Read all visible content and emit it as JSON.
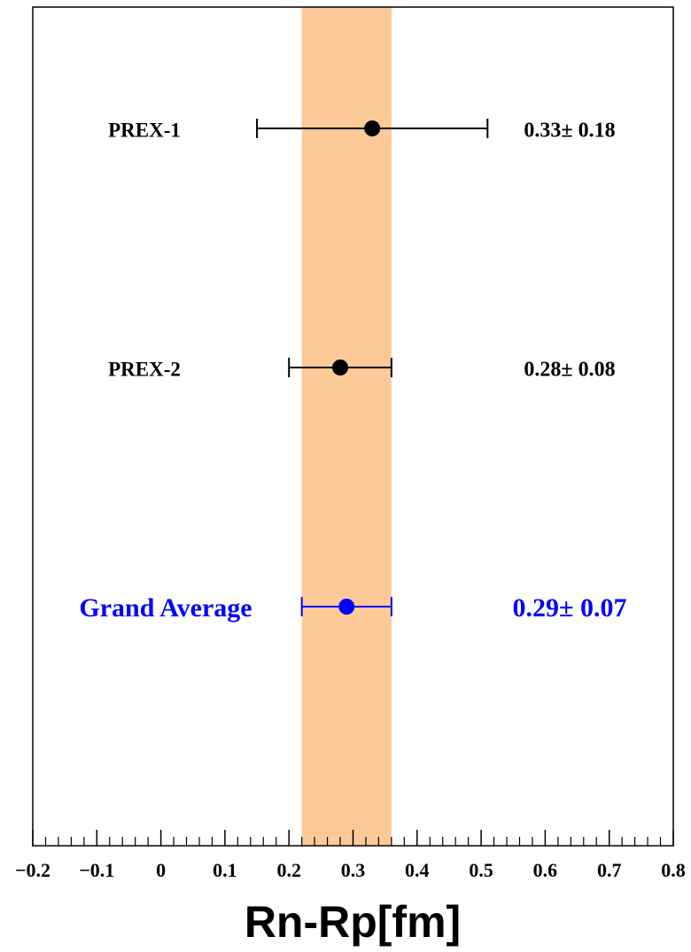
{
  "chart_data": {
    "type": "errorbar",
    "categories": [
      "PREX-1",
      "PREX-2",
      "Grand Average"
    ],
    "values": [
      0.33,
      0.28,
      0.29
    ],
    "errors": [
      0.18,
      0.08,
      0.07
    ],
    "value_labels": [
      "0.33± 0.18",
      "0.28± 0.08",
      "0.29± 0.07"
    ],
    "colors": [
      "#000000",
      "#000000",
      "#0000ff"
    ],
    "band": [
      0.22,
      0.36
    ],
    "band_color": "#fdc998",
    "x_label": "Rn-Rp[fm]",
    "xlim": [
      -0.2,
      0.8
    ],
    "xticks": [
      {
        "value": -0.2,
        "label": "−0.2"
      },
      {
        "value": -0.1,
        "label": "−0.1"
      },
      0,
      0.1,
      0.2,
      0.3,
      0.4,
      0.5,
      0.6,
      0.7,
      0.8
    ]
  }
}
